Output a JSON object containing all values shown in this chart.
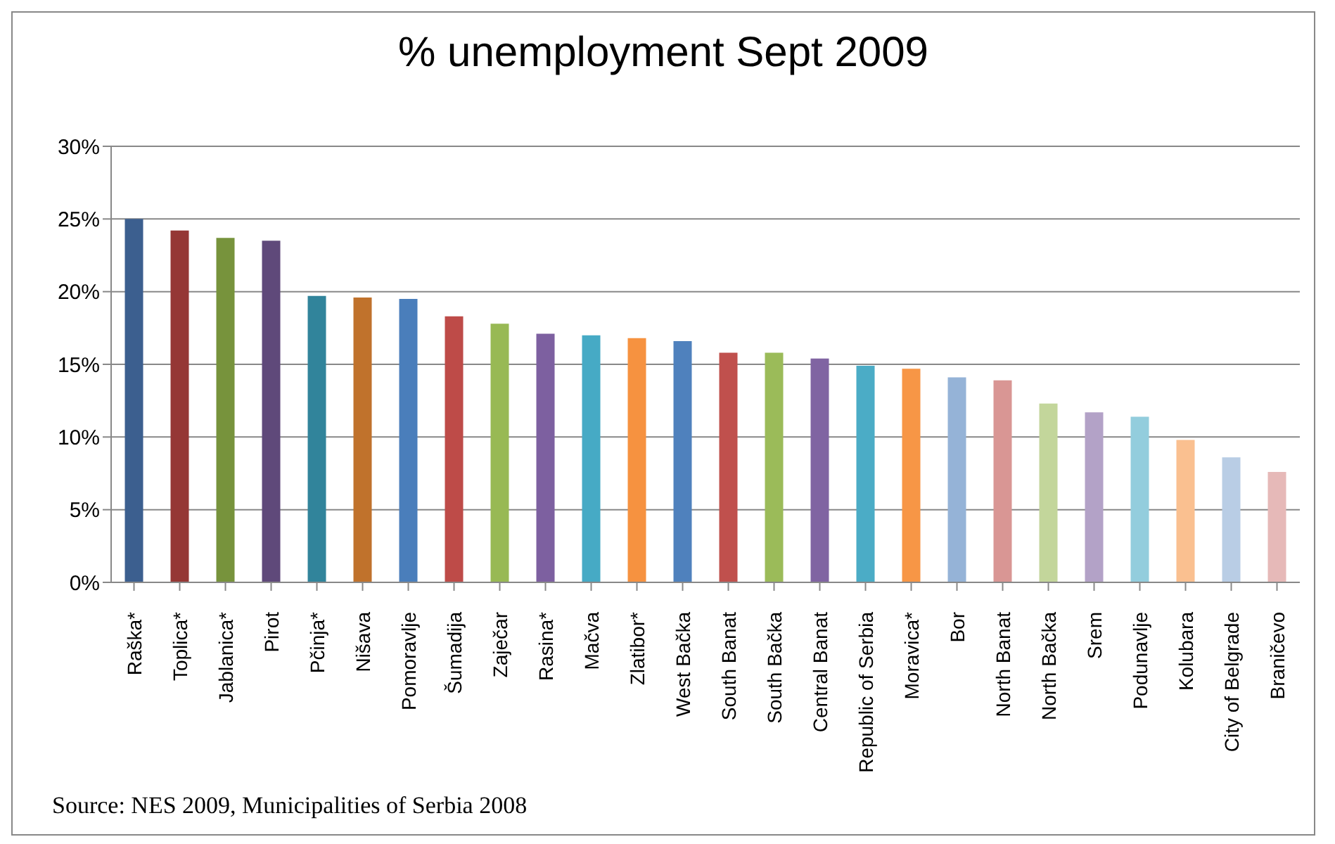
{
  "chart_data": {
    "type": "bar",
    "title": "% unemployment Sept 2009",
    "categories": [
      "Raška*",
      "Toplica*",
      "Jablanica*",
      "Pirot",
      "Pčinja*",
      "Nišava",
      "Pomoravlje",
      "Šumadija",
      "Zaječar",
      "Rasina*",
      "Mačva",
      "Zlatibor*",
      "West Bačka",
      "South Banat",
      "South Bačka",
      "Central Banat",
      "Republic of Serbia",
      "Moravica*",
      "Bor",
      "North Banat",
      "North Bačka",
      "Srem",
      "Podunavlje",
      "Kolubara",
      "City of Belgrade",
      "Braničevo"
    ],
    "values": [
      25.0,
      24.2,
      23.7,
      23.5,
      19.7,
      19.6,
      19.5,
      18.3,
      17.8,
      17.1,
      17.0,
      16.8,
      16.6,
      15.8,
      15.8,
      15.4,
      14.9,
      14.7,
      14.1,
      13.9,
      12.3,
      11.7,
      11.4,
      9.8,
      8.6,
      7.6
    ],
    "colors": [
      "#3c5f8f",
      "#953735",
      "#77933c",
      "#5f497a",
      "#31849b",
      "#c0722c",
      "#4a7ebb",
      "#be4b48",
      "#98b954",
      "#7d60a0",
      "#46aac5",
      "#f69240",
      "#4f81bd",
      "#c0504d",
      "#9bbb59",
      "#8064a2",
      "#4bacc6",
      "#f79646",
      "#95b3d7",
      "#d99694",
      "#c3d69b",
      "#b3a2c7",
      "#93cddd",
      "#fac090",
      "#b9cde5",
      "#e6b9b8"
    ],
    "ylim": [
      0,
      30
    ],
    "yticks": [
      {
        "value": 0,
        "label": "0%"
      },
      {
        "value": 5,
        "label": "5%"
      },
      {
        "value": 10,
        "label": "10%"
      },
      {
        "value": 15,
        "label": "15%"
      },
      {
        "value": 20,
        "label": "20%"
      },
      {
        "value": 25,
        "label": "25%"
      },
      {
        "value": 30,
        "label": "30%"
      }
    ],
    "grid": "y",
    "legend": false,
    "annotations": [
      "Source: NES 2009, Municipalities of Serbia 2008"
    ]
  }
}
